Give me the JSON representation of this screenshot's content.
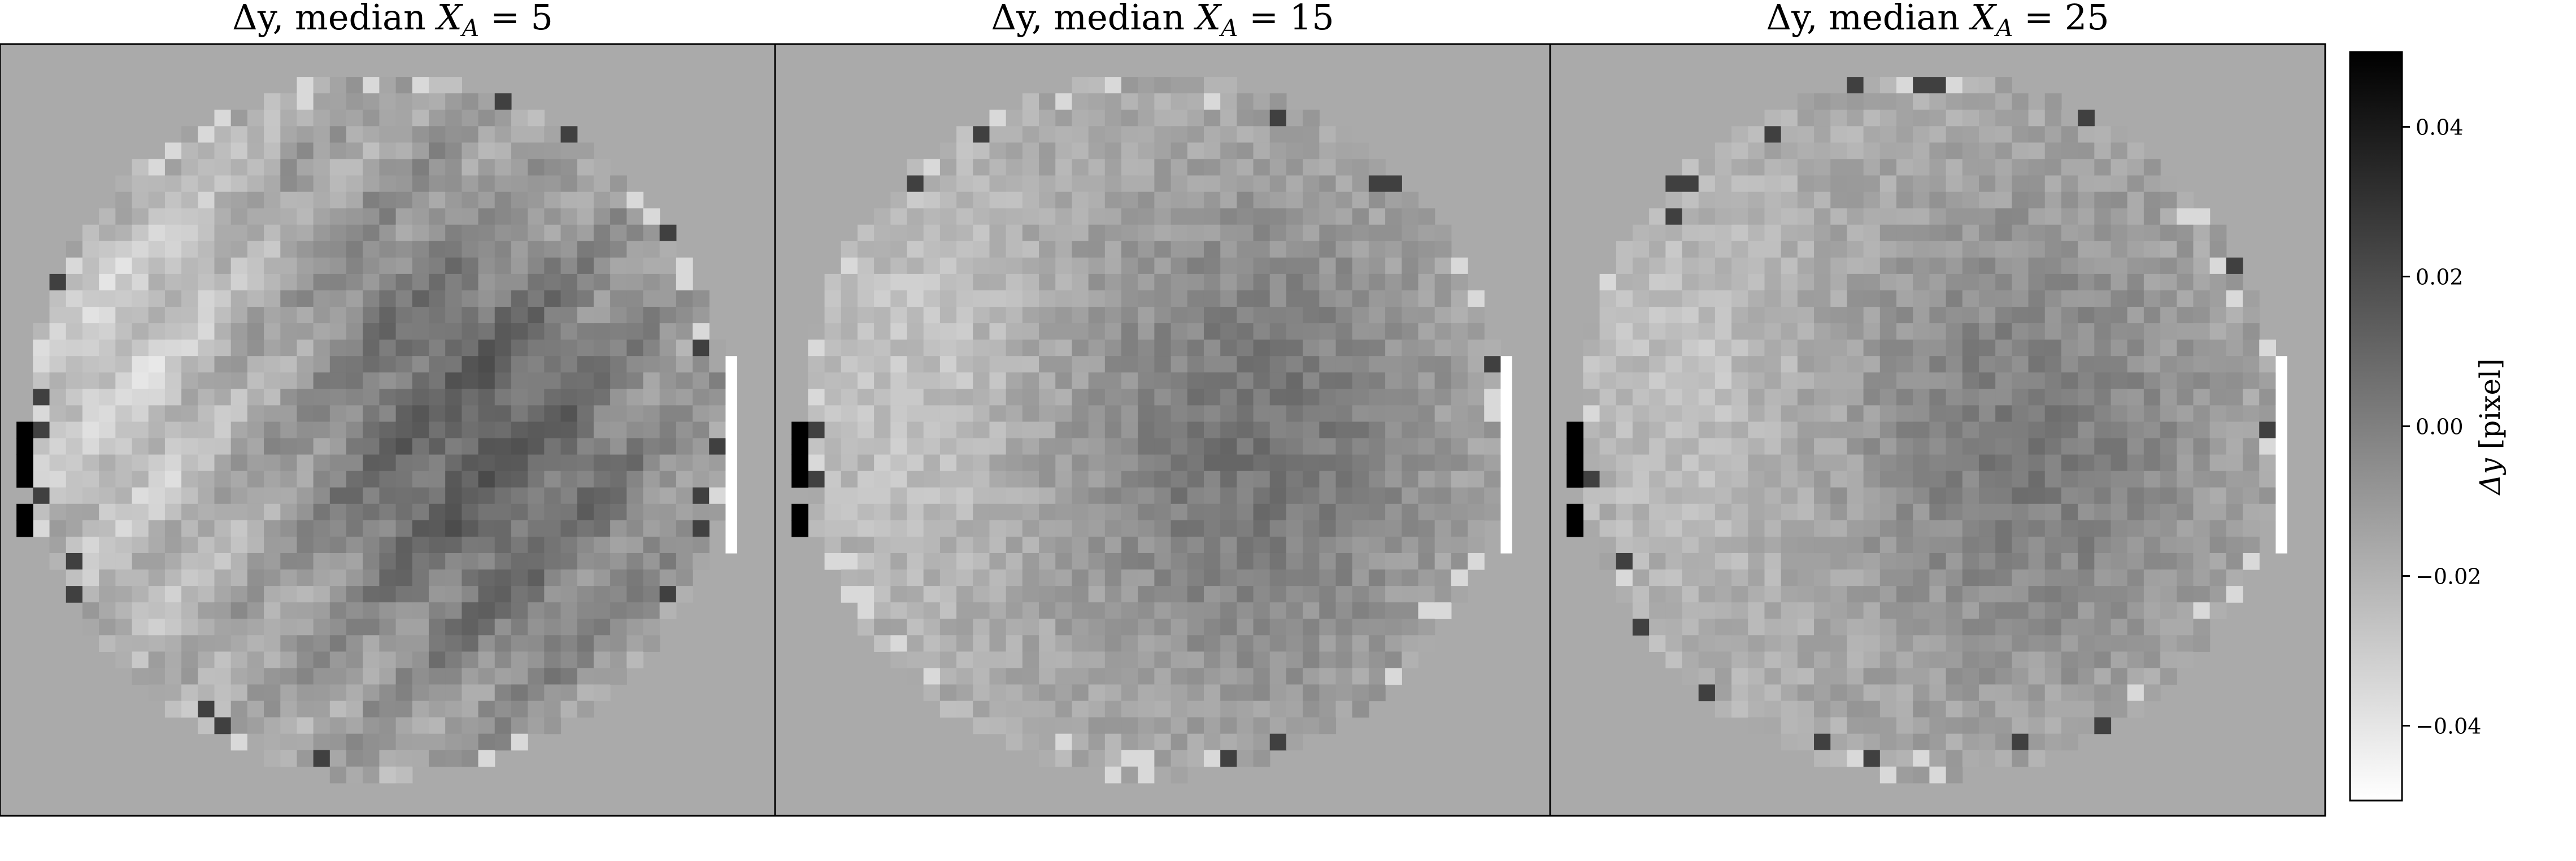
{
  "chart_data": [
    {
      "type": "heatmap",
      "title": "Δy, median X_A = 5",
      "title_main": "Δy, median ",
      "title_var": "X",
      "title_sub": "A",
      "title_rest": " = 5",
      "value_range": [
        -0.05,
        0.05
      ],
      "background_value": 0.0,
      "features": [
        "circular detector map, about 47 cells across",
        "darker (positive Δy) patch toward centre-right and lower-centre",
        "lighter (negative Δy) band near the left and top-left",
        "near-black cells on the left edge (x ≈ 0.04)",
        "near-white strip on the right edge (x ≈ 0.95)",
        "diagonal streak structure across the lower half"
      ]
    },
    {
      "type": "heatmap",
      "title": "Δy, median X_A = 15",
      "title_main": "Δy, median ",
      "title_var": "X",
      "title_sub": "A",
      "title_rest": " = 15",
      "value_range": [
        -0.05,
        0.05
      ],
      "background_value": 0.0,
      "features": [
        "circular detector map, about 47 cells across",
        "smoother gradient: darker toward the right-centre",
        "lighter toward the upper-left",
        "near-black cells on the left edge",
        "near-white strip on the right edge"
      ]
    },
    {
      "type": "heatmap",
      "title": "Δy, median X_A = 25",
      "title_main": "Δy, median ",
      "title_var": "X",
      "title_sub": "A",
      "title_rest": " = 25",
      "value_range": [
        -0.05,
        0.05
      ],
      "background_value": 0.0,
      "features": [
        "circular detector map, about 47 cells across",
        "similar to the X_A = 15 panel with slightly weaker contrast",
        "near-black cells on the left edge",
        "near-white strip on the right edge"
      ]
    }
  ],
  "colorbar": {
    "label_var": "Δy",
    "label_unit": " [pixel]",
    "ticks": [
      0.04,
      0.02,
      0.0,
      -0.02,
      -0.04
    ],
    "tick_labels": [
      "0.04",
      "0.02",
      "0.00",
      "−0.02",
      "−0.04"
    ],
    "range": [
      -0.05,
      0.05
    ],
    "colormap": "gray_r (white = −0.05, black = +0.05)"
  },
  "colors": {
    "background_gray": "#aaaaaa",
    "frame": "#000000"
  }
}
